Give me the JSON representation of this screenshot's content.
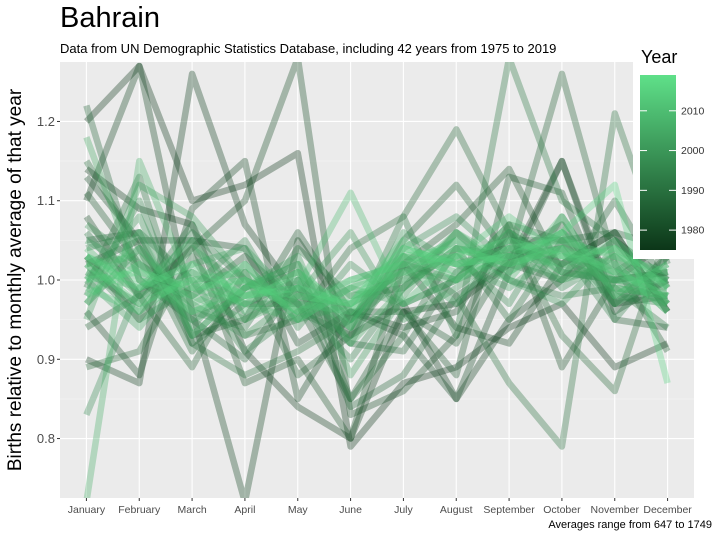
{
  "chart_data": {
    "type": "line",
    "title": "Bahrain",
    "subtitle": "Data from UN Demographic Statistics Database, including 42 years from 1975 to 2019",
    "xlabel": "",
    "ylabel": "Births relative to monthly average of that year",
    "caption": "Averages range from 647 to 1749",
    "categories": [
      "January",
      "February",
      "March",
      "April",
      "May",
      "June",
      "July",
      "August",
      "September",
      "October",
      "November",
      "December"
    ],
    "ylim": [
      0.725,
      1.275
    ],
    "yticks": [
      0.8,
      0.9,
      1.0,
      1.1,
      1.2
    ],
    "ytick_labels": [
      "0.8",
      "0.9",
      "1.0",
      "1.1",
      "1.2"
    ],
    "grid": true,
    "legend": {
      "title": "Year",
      "placement": "right",
      "ticks": [
        1980,
        1990,
        2000,
        2010
      ],
      "range": [
        1975,
        2019
      ],
      "color_low": "#0c3618",
      "color_high": "#5fe089"
    },
    "series": [
      {
        "year": 1975,
        "values": [
          1.2,
          1.27,
          1.1,
          1.12,
          1.16,
          0.79,
          0.87,
          0.89,
          0.94,
          0.97,
          0.89,
          0.92
        ]
      },
      {
        "year": 1976,
        "values": [
          1.14,
          1.09,
          1.07,
          0.91,
          0.84,
          0.8,
          0.96,
          0.97,
          1.02,
          1.15,
          0.97,
          0.98
        ]
      },
      {
        "year": 1977,
        "values": [
          0.9,
          0.87,
          1.26,
          1.07,
          0.98,
          0.93,
          0.97,
          0.85,
          0.95,
          1.0,
          1.05,
          1.0
        ]
      },
      {
        "year": 1978,
        "values": [
          1.1,
          1.27,
          0.96,
          0.72,
          1.05,
          0.95,
          1.02,
          0.94,
          0.92,
          1.02,
          1.06,
          0.96
        ]
      },
      {
        "year": 1979,
        "values": [
          0.96,
          0.88,
          1.09,
          1.15,
          0.85,
          0.96,
          0.94,
          0.96,
          1.06,
          1.02,
          1.06,
          0.96
        ]
      },
      {
        "year": 1980,
        "values": [
          1.13,
          1.05,
          1.05,
          1.04,
          0.92,
          0.96,
          0.93,
          0.85,
          1.01,
          1.15,
          0.96,
          1.0
        ]
      },
      {
        "year": 1981,
        "values": [
          1.08,
          0.98,
          1.04,
          1.1,
          1.28,
          0.83,
          0.86,
          0.93,
          1.07,
          0.89,
          1.0,
          1.01
        ]
      },
      {
        "year": 1982,
        "values": [
          1.03,
          0.95,
          1.05,
          0.87,
          0.9,
          0.8,
          1.02,
          1.07,
          1.14,
          1.01,
          1.0,
          1.05
        ]
      },
      {
        "year": 1983,
        "values": [
          1.02,
          1.05,
          0.93,
          0.95,
          1.06,
          0.96,
          0.96,
          0.88,
          1.13,
          1.11,
          0.95,
          0.94
        ]
      },
      {
        "year": 1984,
        "values": [
          1.11,
          1.02,
          0.98,
          1.03,
          0.97,
          0.85,
          0.96,
          0.92,
          1.03,
          1.07,
          0.97,
          1.03
        ]
      },
      {
        "year": 1985,
        "values": [
          0.94,
          0.98,
          0.89,
          1.01,
          0.88,
          0.93,
          1.05,
          1.12,
          1.03,
          1.26,
          1.02,
          0.91
        ]
      },
      {
        "year": 1986,
        "values": [
          1.05,
          1.06,
          0.92,
          0.97,
          0.97,
          0.92,
          0.91,
          1.01,
          1.05,
          1.05,
          1.06,
          1.04
        ]
      },
      {
        "year": 1987,
        "values": [
          1.22,
          1.0,
          0.95,
          0.9,
          1.0,
          0.84,
          0.88,
          0.98,
          1.02,
          1.0,
          1.1,
          0.99
        ]
      },
      {
        "year": 1988,
        "values": [
          0.89,
          0.91,
          1.03,
          0.93,
          0.95,
          1.04,
          1.08,
          1.19,
          1.06,
          0.93,
          0.86,
          1.06
        ]
      },
      {
        "year": 1989,
        "values": [
          1.15,
          1.04,
          0.91,
          0.99,
          1.02,
          0.85,
          0.93,
          1.04,
          0.95,
          1.05,
          1.0,
          1.01
        ]
      },
      {
        "year": 1990,
        "values": [
          0.99,
          1.13,
          0.92,
          0.88,
          0.91,
          0.95,
          1.03,
          0.98,
          0.87,
          0.79,
          1.21,
          1.02
        ]
      },
      {
        "year": 1991,
        "values": [
          1.06,
          0.98,
          1.07,
          0.95,
          0.99,
          0.94,
          1.08,
          0.93,
          1.28,
          1.1,
          1.05,
          0.97
        ]
      },
      {
        "year": 1992,
        "values": [
          0.97,
          1.04,
          0.96,
          0.94,
          1.04,
          0.98,
          0.99,
          1.06,
          1.0,
          0.98,
          0.99,
          0.94
        ]
      },
      {
        "year": 1993,
        "values": [
          1.04,
          1.06,
          1.0,
          0.91,
          0.96,
          0.93,
          1.02,
          1.0,
          1.07,
          1.05,
          0.97,
          1.0
        ]
      },
      {
        "year": 1994,
        "values": [
          1.01,
          0.97,
          1.06,
          1.0,
          0.97,
          0.9,
          0.99,
          1.04,
          1.03,
          1.04,
          0.95,
          1.03
        ]
      },
      {
        "year": 1995,
        "values": [
          0.98,
          1.1,
          0.93,
          0.99,
          1.01,
          0.95,
          1.0,
          1.03,
          0.97,
          1.08,
          0.98,
          0.97
        ]
      },
      {
        "year": 1996,
        "values": [
          1.02,
          0.95,
          0.99,
          1.05,
          0.94,
          1.02,
          0.97,
          1.0,
          1.06,
          0.99,
          1.03,
          0.98
        ]
      },
      {
        "year": 1997,
        "values": [
          0.83,
          0.99,
          1.01,
          0.97,
          1.0,
          0.92,
          1.04,
          1.08,
          1.02,
          1.06,
          1.01,
          1.05
        ]
      },
      {
        "year": 1998,
        "values": [
          1.07,
          1.02,
          0.97,
          0.93,
          0.98,
          1.06,
          0.95,
          0.99,
          1.04,
          1.02,
          1.0,
          0.97
        ]
      },
      {
        "year": 1999,
        "values": [
          1.0,
          1.08,
          0.94,
          1.02,
          0.95,
          0.97,
          1.01,
          1.05,
          1.0,
          0.97,
          1.04,
          1.0
        ]
      },
      {
        "year": 2000,
        "values": [
          1.03,
          0.96,
          1.04,
          0.99,
          1.03,
          0.88,
          0.98,
          1.06,
          1.01,
          1.05,
          0.99,
          0.98
        ]
      },
      {
        "year": 2001,
        "values": [
          0.95,
          1.12,
          1.08,
          1.0,
          0.96,
          0.99,
          0.97,
          1.0,
          1.03,
          1.0,
          1.02,
          0.96
        ]
      },
      {
        "year": 2002,
        "values": [
          1.05,
          1.01,
          0.95,
          0.98,
          0.99,
          0.94,
          1.06,
          1.02,
          0.99,
          1.04,
          0.97,
          1.01
        ]
      },
      {
        "year": 2003,
        "values": [
          1.0,
          0.94,
          1.02,
          1.04,
          0.97,
          1.0,
          1.02,
          0.97,
          1.05,
          1.01,
          1.0,
          0.99
        ]
      },
      {
        "year": 2004,
        "values": [
          1.18,
          1.0,
          0.96,
          0.98,
          1.01,
          0.92,
          0.99,
          1.04,
          1.02,
          1.06,
          0.98,
          1.02
        ]
      },
      {
        "year": 2005,
        "values": [
          1.02,
          1.03,
          0.98,
          0.95,
          0.98,
          0.97,
          1.01,
          1.0,
          1.07,
          1.0,
          1.03,
          0.97
        ]
      },
      {
        "year": 2006,
        "values": [
          0.72,
          1.15,
          0.99,
          0.97,
          0.95,
          0.99,
          1.03,
          1.02,
          1.04,
          1.03,
          1.01,
          1.0
        ]
      },
      {
        "year": 2007,
        "values": [
          1.04,
          0.98,
          1.0,
          1.01,
          0.96,
          0.98,
          1.0,
          1.06,
          1.02,
          1.04,
          0.99,
          0.98
        ]
      },
      {
        "year": 2008,
        "values": [
          0.97,
          1.06,
          0.93,
          0.99,
          1.02,
          0.94,
          1.03,
          1.01,
          1.06,
          1.01,
          1.05,
          0.99
        ]
      },
      {
        "year": 2009,
        "values": [
          1.01,
          0.99,
          1.05,
          0.96,
          0.99,
          1.11,
          0.97,
          1.03,
          1.0,
          1.08,
          0.98,
          1.02
        ]
      },
      {
        "year": 2010,
        "values": [
          1.0,
          1.04,
          0.97,
          1.0,
          0.97,
          0.96,
          1.04,
          1.02,
          1.03,
          1.02,
          1.04,
          0.97
        ]
      },
      {
        "year": 2011,
        "values": [
          0.99,
          0.96,
          1.01,
          0.98,
          1.0,
          0.95,
          1.02,
          1.05,
          1.01,
          1.06,
          1.0,
          1.0
        ]
      },
      {
        "year": 2012,
        "values": [
          1.03,
          1.0,
          0.98,
          1.02,
          0.95,
          0.99,
          1.01,
          1.03,
          1.08,
          1.03,
          1.02,
          0.96
        ]
      },
      {
        "year": 2013,
        "values": [
          0.98,
          1.02,
          0.96,
          0.99,
          0.98,
          0.97,
          1.05,
          1.0,
          1.04,
          1.05,
          1.03,
          1.01
        ]
      },
      {
        "year": 2014,
        "values": [
          1.02,
          0.97,
          1.0,
          0.97,
          1.01,
          0.96,
          1.03,
          1.04,
          1.02,
          1.04,
          1.01,
          0.98
        ]
      },
      {
        "year": 2015,
        "values": [
          1.0,
          1.01,
          0.99,
          1.0,
          0.96,
          1.0,
          1.02,
          1.03,
          1.05,
          1.03,
          1.04,
          0.99
        ]
      },
      {
        "year": 2016,
        "values": [
          1.03,
          0.99,
          1.02,
          0.98,
          0.99,
          0.97,
          1.04,
          1.02,
          1.03,
          1.06,
          1.12,
          0.87
        ]
      }
    ]
  }
}
